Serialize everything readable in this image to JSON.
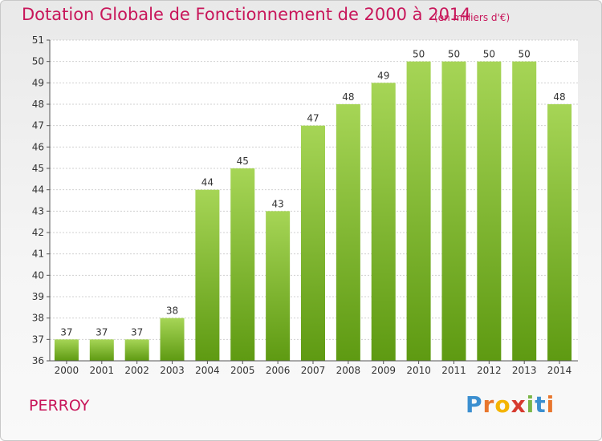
{
  "title": "Dotation Globale de Fonctionnement de 2000 à 2014",
  "subtitle": "(en milliers d'€)",
  "commune": "PERROY",
  "logo": {
    "text": "Proxiti",
    "letters": [
      "P",
      "r",
      "o",
      "x",
      "i",
      "t",
      "i"
    ],
    "colors": [
      "#3b8fd0",
      "#e8762d",
      "#f4b400",
      "#d63a2f",
      "#7ab648",
      "#3b8fd0",
      "#e8762d"
    ]
  },
  "colors": {
    "bar_top": "#a6d556",
    "bar_bottom": "#5e9a12",
    "title": "#c8165a"
  },
  "chart_data": {
    "type": "bar",
    "title": "Dotation Globale de Fonctionnement de 2000 à 2014",
    "subtitle": "(en milliers d'€)",
    "categories": [
      "2000",
      "2001",
      "2002",
      "2003",
      "2004",
      "2005",
      "2006",
      "2007",
      "2008",
      "2009",
      "2010",
      "2011",
      "2012",
      "2013",
      "2014"
    ],
    "values": [
      37,
      37,
      37,
      38,
      44,
      45,
      43,
      47,
      48,
      49,
      50,
      50,
      50,
      50,
      48
    ],
    "xlabel": "",
    "ylabel": "",
    "ylim": [
      36,
      51
    ],
    "yticks": [
      36,
      37,
      38,
      39,
      40,
      41,
      42,
      43,
      44,
      45,
      46,
      47,
      48,
      49,
      50,
      51
    ],
    "grid": true,
    "data_labels": true
  }
}
